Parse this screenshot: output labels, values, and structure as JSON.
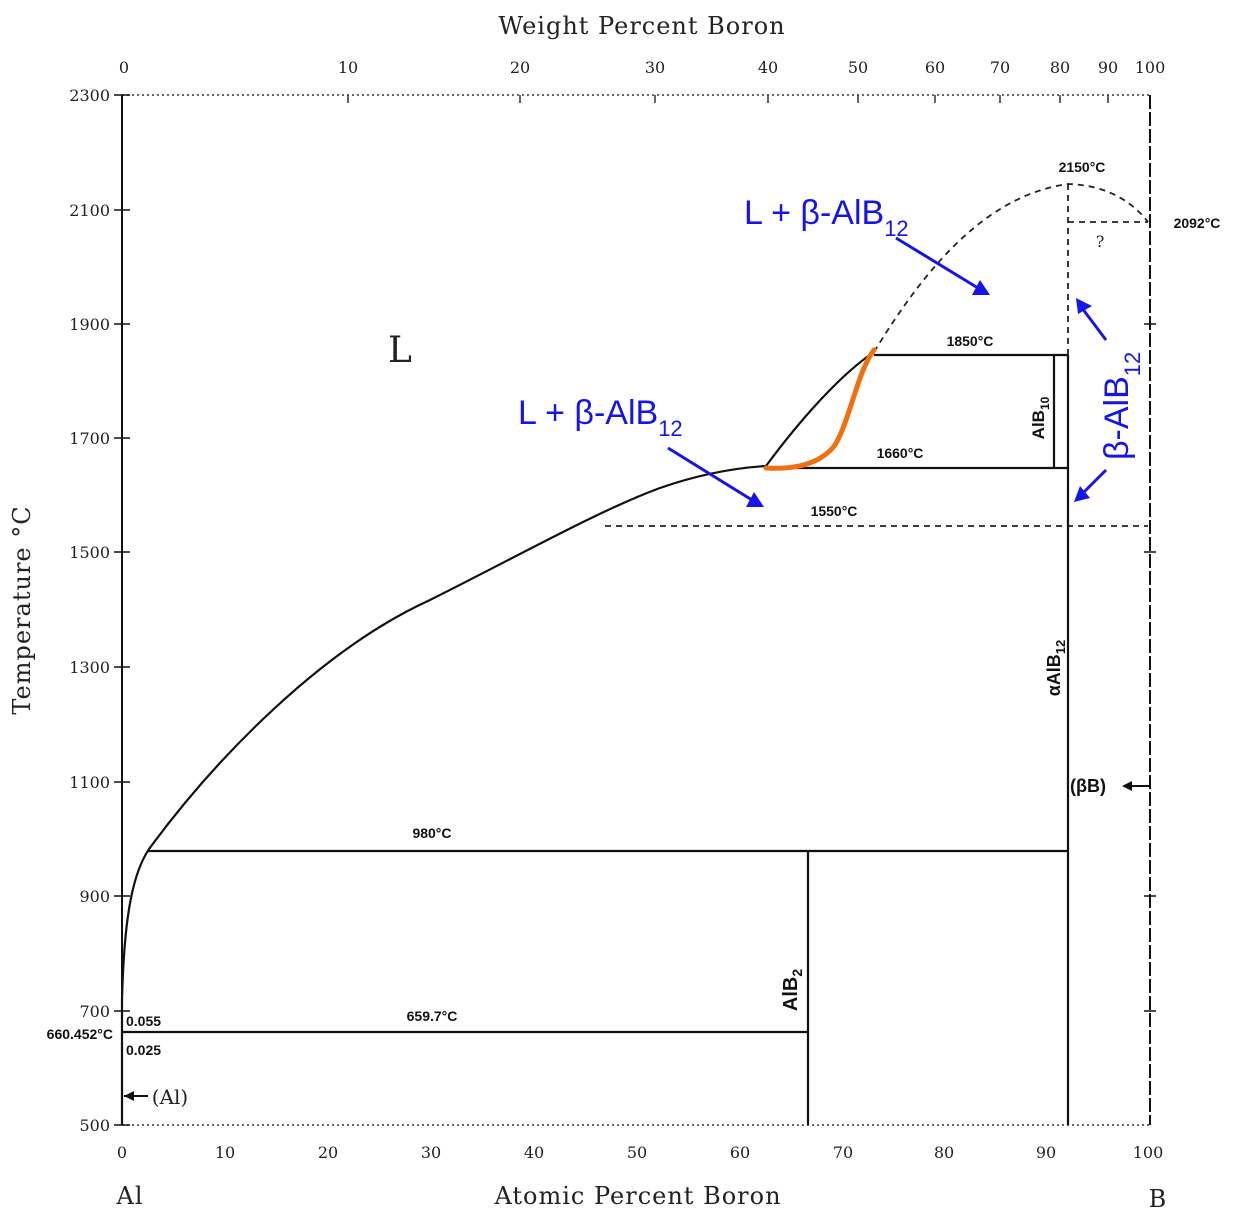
{
  "top_axis": {
    "title": "Weight Percent Boron",
    "ticks": [
      "0",
      "10",
      "20",
      "30",
      "40",
      "50",
      "60",
      "70",
      "80",
      "90",
      "100"
    ]
  },
  "bottom_axis": {
    "title": "Atomic Percent Boron",
    "ticks": [
      "0",
      "10",
      "20",
      "30",
      "40",
      "50",
      "60",
      "70",
      "80",
      "90",
      "100"
    ],
    "left_element": "Al",
    "right_element": "B"
  },
  "left_axis": {
    "title": "Temperature °C",
    "ticks": [
      "2300",
      "2100",
      "1900",
      "1700",
      "1500",
      "1300",
      "1100",
      "900",
      "700",
      "500"
    ],
    "extra_label": "660.452°C"
  },
  "phase_labels": {
    "liquid": "L",
    "alb2": "AlB",
    "alb2_sub": "2",
    "alb10": "AlB",
    "alb10_sub": "10",
    "alpha_alb12": "αAlB",
    "alpha_alb12_sub": "12",
    "beta_b": "(βB)",
    "al": "(Al)",
    "question": "?"
  },
  "temperature_labels": {
    "t2150": "2150°C",
    "t2092": "2092°C",
    "t1850": "1850°C",
    "t1660": "1660°C",
    "t1550": "1550°C",
    "t980": "980°C",
    "t659": "659.7°C",
    "c0055": "0.055",
    "c0025": "0.025"
  },
  "annotations": {
    "upper": {
      "text": "L + β-AlB",
      "sub": "12"
    },
    "lower": {
      "text": "L + β-AlB",
      "sub": "12"
    },
    "right": {
      "text": "β-AlB",
      "sub": "12"
    }
  },
  "colors": {
    "annotation": "#1515e8",
    "highlight": "#f07010",
    "lines": "#111111"
  }
}
